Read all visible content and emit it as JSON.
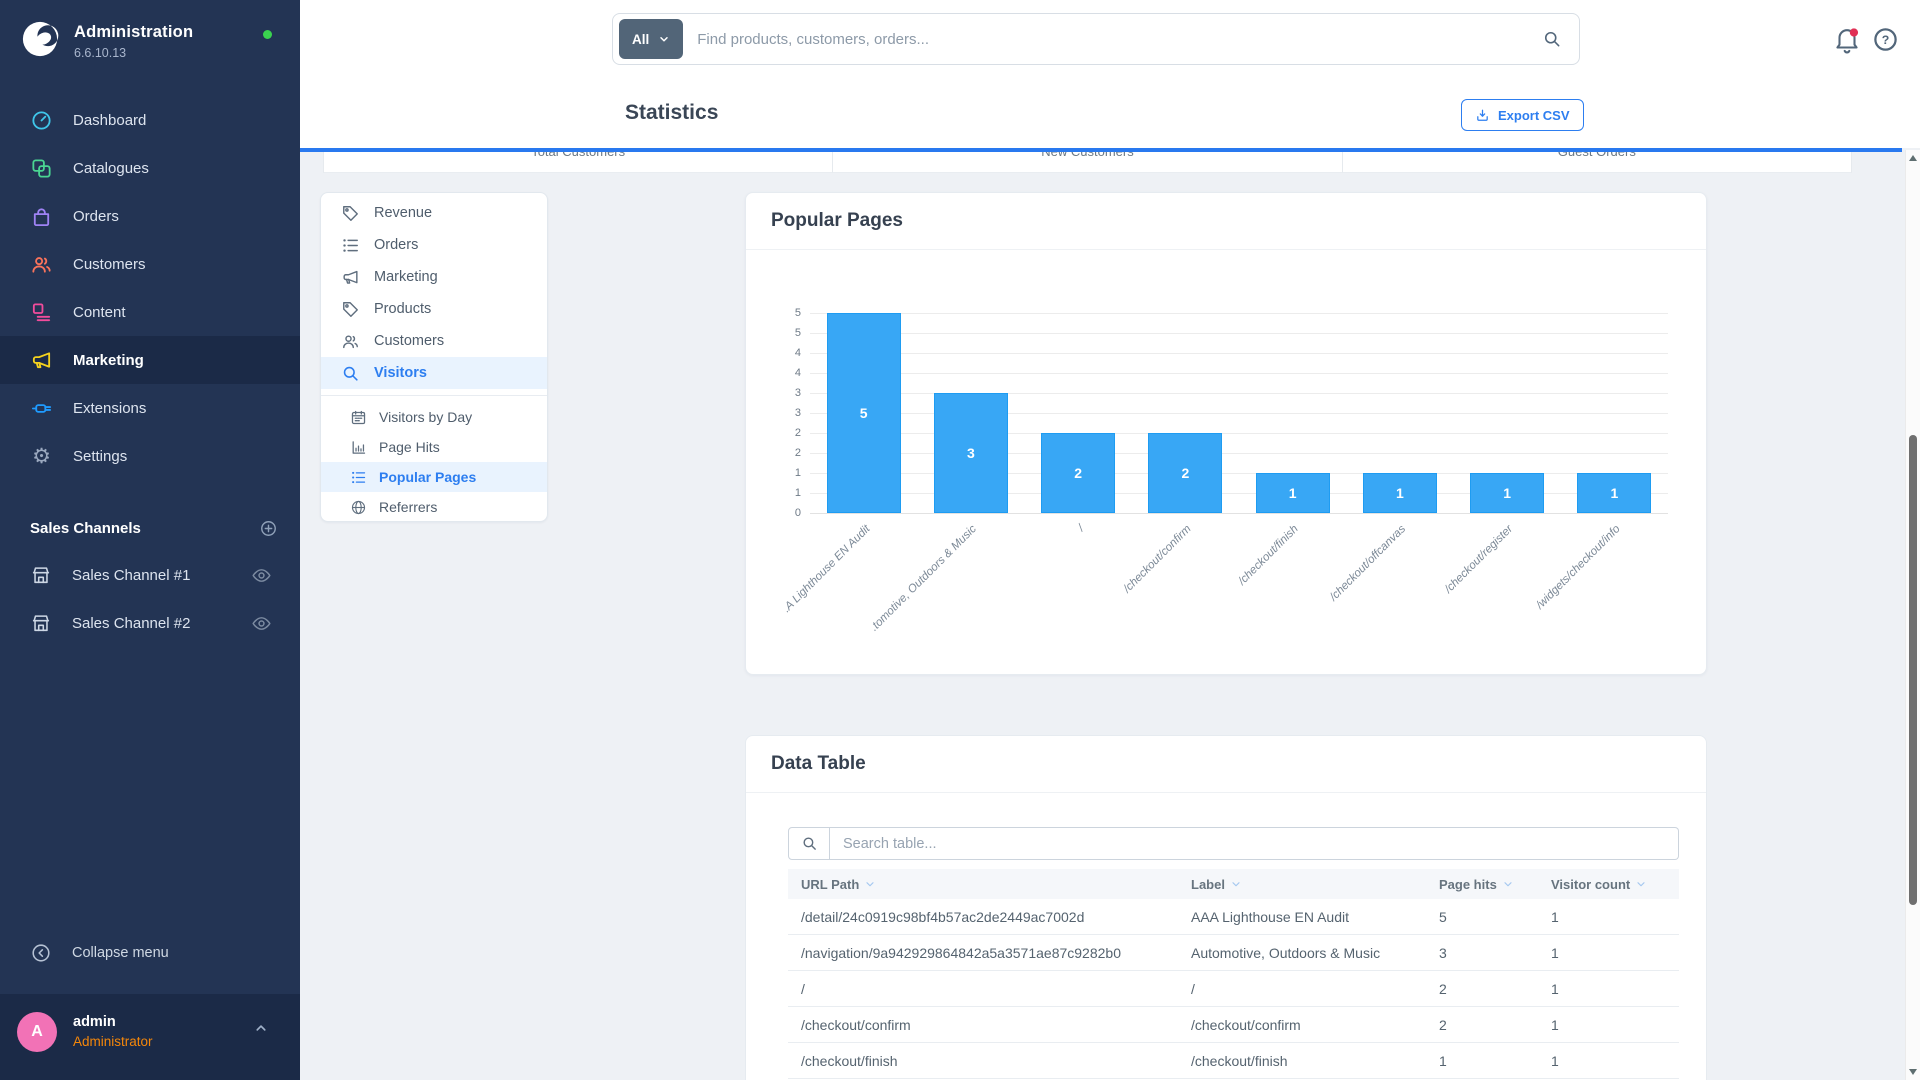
{
  "app": {
    "accent_color": "#2d7ef0",
    "sidebar_color": "#233454",
    "content_bg": "#eef1f5"
  },
  "sidebar": {
    "title": "Administration",
    "version": "6.6.10.13",
    "status_dot_color": "#3ad34f",
    "logo_icon": "shopware-logo-icon",
    "menu": [
      {
        "label": "Dashboard",
        "icon": "dashboard-icon",
        "icon_color": "#3fc6ea",
        "active": false
      },
      {
        "label": "Catalogues",
        "icon": "catalogues-icon",
        "icon_color": "#4ad592",
        "active": false
      },
      {
        "label": "Orders",
        "icon": "orders-icon",
        "icon_color": "#9f83f5",
        "active": false
      },
      {
        "label": "Customers",
        "icon": "customers-icon",
        "icon_color": "#f9735b",
        "active": false
      },
      {
        "label": "Content",
        "icon": "content-icon",
        "icon_color": "#f24c9c",
        "active": false
      },
      {
        "label": "Marketing",
        "icon": "megaphone-icon",
        "icon_color": "#f5d21e",
        "active": true
      },
      {
        "label": "Extensions",
        "icon": "plug-icon",
        "icon_color": "#1f9bff",
        "active": false
      },
      {
        "label": "Settings",
        "icon": "gear-icon",
        "icon_color": "#9aa8bf",
        "active": false
      }
    ],
    "sales_channels_heading": "Sales Channels",
    "sales_channels": [
      {
        "label": "Sales Channel #1",
        "icon": "storefront-icon"
      },
      {
        "label": "Sales Channel #2",
        "icon": "storefront-icon"
      }
    ],
    "collapse_label": "Collapse menu",
    "user": {
      "initial": "A",
      "name": "admin",
      "role": "Administrator",
      "role_color": "#f5870a",
      "avatar_color": "#f272b6"
    }
  },
  "topbar": {
    "scope_label": "All",
    "search_placeholder": "Find products, customers, orders..."
  },
  "smartbar": {
    "title": "Statistics",
    "export_label": "Export CSV"
  },
  "stat_tabs": [
    {
      "label": "Total Customers"
    },
    {
      "label": "New Customers"
    },
    {
      "label": "Guest Orders"
    }
  ],
  "subnav": {
    "items": [
      {
        "label": "Revenue",
        "icon": "tag-icon",
        "active": false
      },
      {
        "label": "Orders",
        "icon": "list-icon",
        "active": false
      },
      {
        "label": "Marketing",
        "icon": "megaphone-icon",
        "active": false
      },
      {
        "label": "Products",
        "icon": "tag-icon",
        "active": false
      },
      {
        "label": "Customers",
        "icon": "people-icon",
        "active": false
      },
      {
        "label": "Visitors",
        "icon": "magnifier-icon",
        "active": true
      }
    ],
    "sub_items": [
      {
        "label": "Visitors by Day",
        "icon": "calendar-icon",
        "active": false
      },
      {
        "label": "Page Hits",
        "icon": "bar-chart-icon",
        "active": false
      },
      {
        "label": "Popular Pages",
        "icon": "list-icon",
        "active": true
      },
      {
        "label": "Referrers",
        "icon": "globe-icon",
        "active": false
      }
    ]
  },
  "chart_card": {
    "title": "Popular Pages"
  },
  "chart_data": {
    "type": "bar",
    "title": "Popular Pages",
    "categories": [
      ".A Lighthouse EN Audit",
      ".tomotive, Outdoors & Music",
      "/",
      "/checkout/confirm",
      "/checkout/finish",
      "/checkout/offcanvas",
      "/checkout/register",
      "/widgets/checkout/info"
    ],
    "values": [
      5,
      3,
      2,
      2,
      1,
      1,
      1,
      1
    ],
    "ylim": [
      0,
      5
    ],
    "y_ticks_top_to_bottom": [
      "5",
      "5",
      "4",
      "4",
      "3",
      "3",
      "2",
      "2",
      "1",
      "1",
      "0"
    ],
    "grid": "horizontal",
    "legend": "none",
    "bar_color": "#38a7f5",
    "value_label_color": "#ffffff"
  },
  "table_card": {
    "title": "Data Table",
    "search_placeholder": "Search table...",
    "columns": [
      {
        "label": "URL Path"
      },
      {
        "label": "Label"
      },
      {
        "label": "Page hits"
      },
      {
        "label": "Visitor count"
      }
    ],
    "rows": [
      {
        "url": "/detail/24c0919c98bf4b57ac2de2449ac7002d",
        "label": "AAA Lighthouse EN Audit",
        "page_hits": "5",
        "visitor_count": "1"
      },
      {
        "url": "/navigation/9a942929864842a5a3571ae87c9282b0",
        "label": "Automotive, Outdoors & Music",
        "page_hits": "3",
        "visitor_count": "1"
      },
      {
        "url": "/",
        "label": "/",
        "page_hits": "2",
        "visitor_count": "1"
      },
      {
        "url": "/checkout/confirm",
        "label": "/checkout/confirm",
        "page_hits": "2",
        "visitor_count": "1"
      },
      {
        "url": "/checkout/finish",
        "label": "/checkout/finish",
        "page_hits": "1",
        "visitor_count": "1"
      }
    ]
  }
}
